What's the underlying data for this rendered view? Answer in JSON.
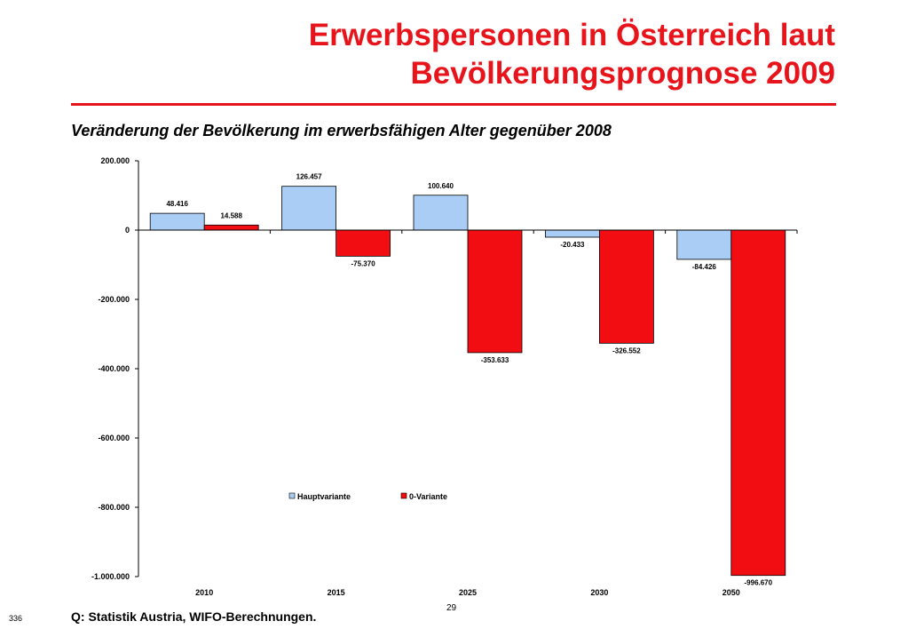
{
  "slide": {
    "title_line1": "Erwerbspersonen in Österreich laut",
    "title_line2": "Bevölkerungsprognose 2009",
    "subtitle": "Veränderung der Bevölkerung im erwerbsfähigen Alter gegenüber 2008",
    "source": "Q: Statistik Austria, WIFO-Berechnungen.",
    "page_number": "29",
    "corner_number": "336"
  },
  "colors": {
    "title": "#e8141b",
    "hauptvariante": "#a9cdf4",
    "null_variante": "#f20d12",
    "bar_border": "#000000"
  },
  "chart_data": {
    "type": "bar",
    "categories": [
      "2010",
      "2015",
      "2025",
      "2030",
      "2050"
    ],
    "series": [
      {
        "name": "Hauptvariante",
        "values": [
          48416,
          126457,
          100640,
          -20433,
          -84426
        ],
        "labels": [
          "48.416",
          "126.457",
          "100.640",
          "-20.433",
          "-84.426"
        ]
      },
      {
        "name": "0-Variante",
        "values": [
          14588,
          -75370,
          -353633,
          -326552,
          -996670
        ],
        "labels": [
          "14.588",
          "-75.370",
          "-353.633",
          "-326.552",
          "-996.670"
        ]
      }
    ],
    "ylim": [
      -1000000,
      200000
    ],
    "yticks": [
      200000,
      0,
      -200000,
      -400000,
      -600000,
      -800000,
      -1000000
    ],
    "ytick_labels": [
      "200.000",
      "0",
      "-200.000",
      "-400.000",
      "-600.000",
      "-800.000",
      "-1.000.000"
    ],
    "legend_position": "inside-center",
    "grid": false
  }
}
